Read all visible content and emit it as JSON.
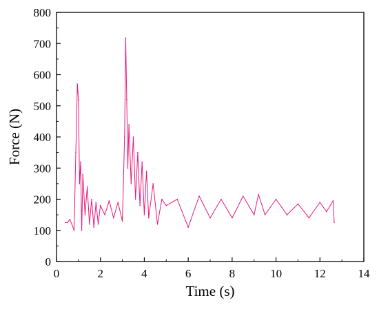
{
  "chart_data": {
    "type": "line",
    "title": "",
    "xlabel": "Time (s)",
    "ylabel": "Force (N)",
    "xlim": [
      0,
      14
    ],
    "ylim": [
      0,
      800
    ],
    "xticks": [
      0,
      2,
      4,
      6,
      8,
      10,
      12,
      14
    ],
    "yticks": [
      0,
      100,
      200,
      300,
      400,
      500,
      600,
      700,
      800
    ],
    "grid": false,
    "legend": "none",
    "line_color": "#e8197a",
    "series": [
      {
        "name": "",
        "x": [
          0.4,
          0.5,
          0.6,
          0.7,
          0.8,
          0.88,
          0.95,
          1.0,
          1.05,
          1.1,
          1.15,
          1.2,
          1.3,
          1.4,
          1.5,
          1.6,
          1.7,
          1.8,
          1.9,
          2.0,
          2.2,
          2.4,
          2.6,
          2.8,
          3.0,
          3.1,
          3.15,
          3.2,
          3.25,
          3.3,
          3.4,
          3.5,
          3.6,
          3.7,
          3.8,
          3.9,
          4.0,
          4.1,
          4.2,
          4.4,
          4.6,
          4.8,
          5.0,
          5.5,
          6.0,
          6.5,
          7.0,
          7.5,
          8.0,
          8.5,
          9.0,
          9.2,
          9.5,
          10.0,
          10.5,
          11.0,
          11.5,
          12.0,
          12.3,
          12.6,
          12.65
        ],
        "y": [
          125,
          125,
          135,
          120,
          100,
          350,
          570,
          520,
          250,
          320,
          100,
          280,
          150,
          240,
          120,
          200,
          110,
          190,
          120,
          180,
          150,
          195,
          140,
          190,
          130,
          400,
          718,
          520,
          300,
          440,
          250,
          400,
          200,
          350,
          180,
          320,
          150,
          290,
          140,
          250,
          120,
          200,
          180,
          200,
          110,
          210,
          140,
          200,
          140,
          210,
          150,
          215,
          150,
          200,
          150,
          185,
          140,
          190,
          160,
          195,
          125
        ]
      }
    ]
  }
}
